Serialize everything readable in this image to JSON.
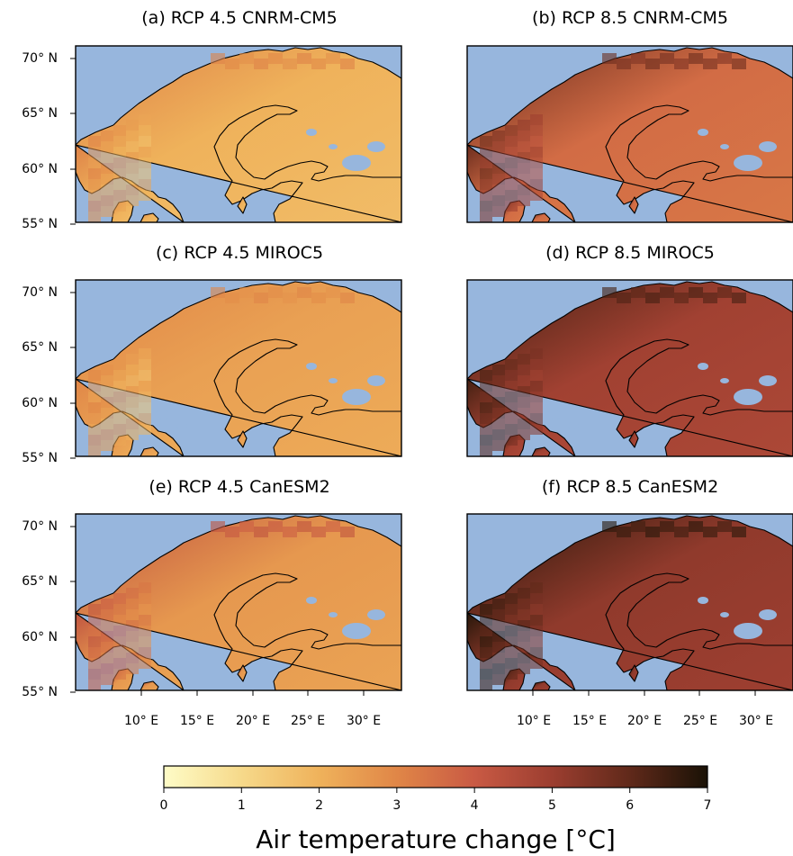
{
  "figure": {
    "colors": {
      "sea": "#97b6dd",
      "coast": "#000000",
      "colormap": [
        "#fefcc7",
        "#f6d98a",
        "#efb25b",
        "#e08647",
        "#c95a44",
        "#9c3e30",
        "#60291a",
        "#1a1206"
      ]
    },
    "lat_tick_labels": [
      "70° N",
      "65° N",
      "60° N",
      "55° N"
    ],
    "lon_tick_labels": [
      "10° E",
      "15° E",
      "20° E",
      "25° E",
      "30° E"
    ],
    "panels": [
      {
        "title": "(a) RCP 4.5 CNRM-CM5",
        "mean_change": 2.0,
        "coast_change": 3.1
      },
      {
        "title": "(b) RCP 8.5 CNRM-CM5",
        "mean_change": 3.6,
        "coast_change": 5.8
      },
      {
        "title": "(c) RCP 4.5 MIROC5",
        "mean_change": 2.4,
        "coast_change": 3.0
      },
      {
        "title": "(d) RCP 8.5 MIROC5",
        "mean_change": 4.9,
        "coast_change": 6.4
      },
      {
        "title": "(e) RCP 4.5 CanESM2",
        "mean_change": 2.6,
        "coast_change": 4.2
      },
      {
        "title": "(f) RCP 8.5 CanESM2",
        "mean_change": 5.2,
        "coast_change": 6.8
      }
    ],
    "colorbar": {
      "label": "Air temperature change [°C]",
      "min": 0,
      "max": 7,
      "ticks": [
        "0",
        "1",
        "2",
        "3",
        "4",
        "5",
        "6",
        "7"
      ]
    }
  }
}
